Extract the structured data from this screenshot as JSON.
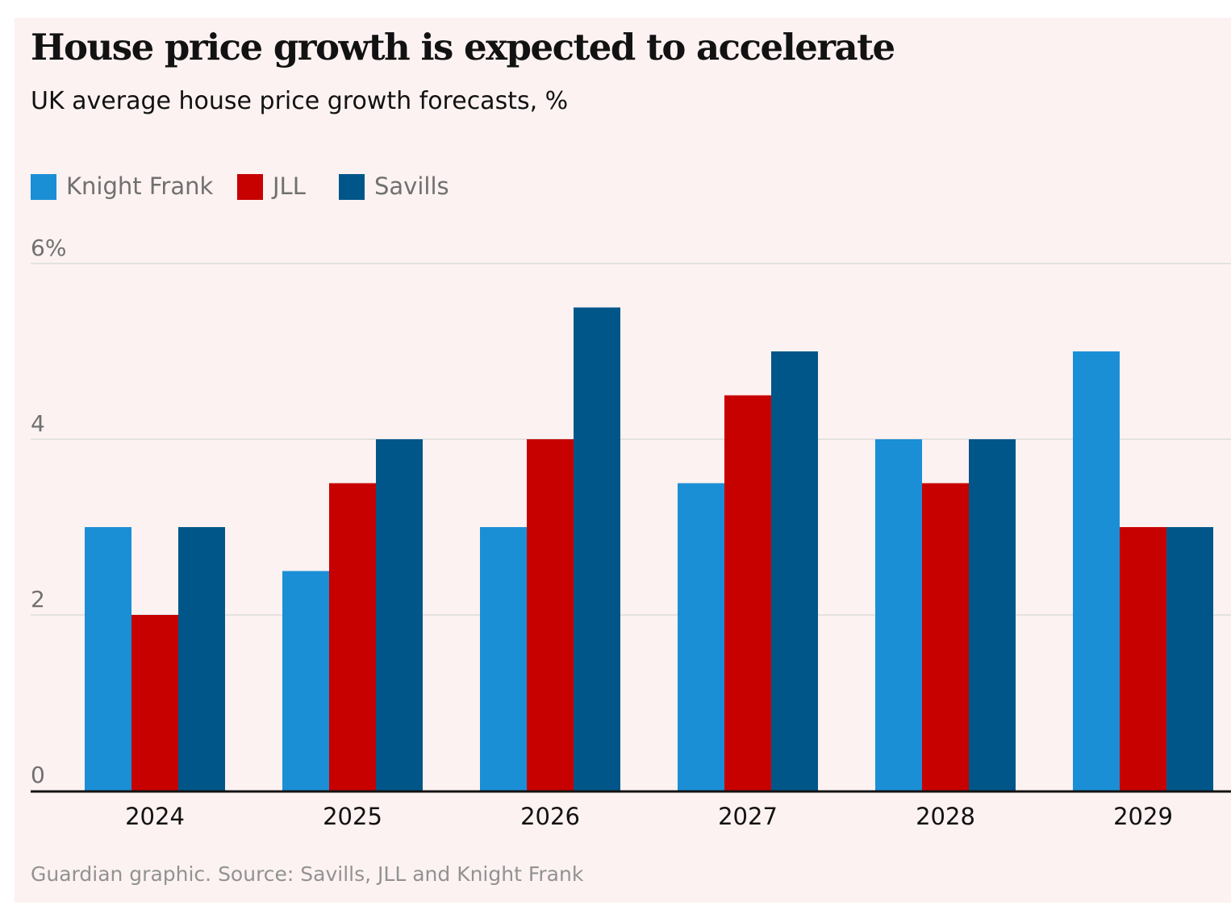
{
  "chart_data": {
    "type": "bar",
    "title": "House price growth is expected to accelerate",
    "subtitle": "UK average house price growth forecasts, %",
    "categories": [
      "2024",
      "2025",
      "2026",
      "2027",
      "2028",
      "2029"
    ],
    "series": [
      {
        "name": "Knight Frank",
        "color": "#1a8fd6",
        "values": [
          3,
          2.5,
          3,
          3.5,
          4,
          5
        ]
      },
      {
        "name": "JLL",
        "color": "#c70000",
        "values": [
          2,
          3.5,
          4,
          4.5,
          3.5,
          3
        ]
      },
      {
        "name": "Savills",
        "color": "#005689",
        "values": [
          3,
          4,
          5.5,
          5,
          4,
          3
        ]
      }
    ],
    "ylim": [
      0,
      6
    ],
    "yticks": [
      {
        "value": 0,
        "label": "0"
      },
      {
        "value": 2,
        "label": "2"
      },
      {
        "value": 4,
        "label": "4"
      },
      {
        "value": 6,
        "label": "6%"
      }
    ],
    "xlabel": "",
    "ylabel": "",
    "grid": true,
    "legend_position": "top-left",
    "source": "Guardian graphic. Source: Savills, JLL and Knight Frank"
  }
}
